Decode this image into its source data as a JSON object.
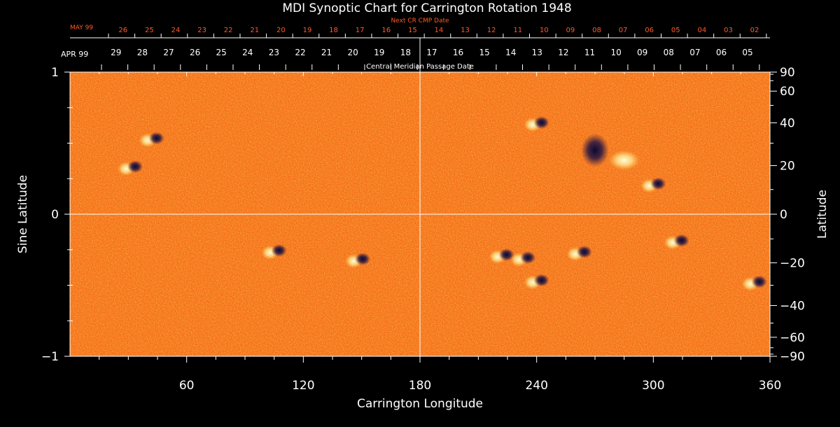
{
  "chart_data": {
    "type": "heatmap",
    "title": "MDI Synoptic Chart for Carrington Rotation 1948",
    "xlabel": "Carrington Longitude",
    "ylabel_left": "Sine Latitude",
    "ylabel_right": "Latitude",
    "xlim": [
      0,
      360
    ],
    "ylim": [
      -1,
      1
    ],
    "x_ticks": [
      60,
      120,
      180,
      240,
      300,
      360
    ],
    "y_ticks_left": [
      {
        "value": 1,
        "label": "1"
      },
      {
        "value": 0,
        "label": "0"
      },
      {
        "value": -1,
        "label": "−1"
      }
    ],
    "y_ticks_right": [
      90,
      60,
      40,
      20,
      0,
      -20,
      -40,
      -60,
      -90
    ],
    "top_axis_title": "Central Meridian Passage Date",
    "top_axis_month": "APR 99",
    "top_axis_dates": [
      "29",
      "28",
      "27",
      "26",
      "25",
      "24",
      "23",
      "22",
      "21",
      "20",
      "19",
      "18",
      "17",
      "16",
      "15",
      "14",
      "13",
      "12",
      "11",
      "10",
      "09",
      "08",
      "07",
      "06",
      "05"
    ],
    "next_axis_title": "Next CR CMP Date",
    "next_axis_month": "MAY 99",
    "next_axis_dates": [
      "26",
      "25",
      "24",
      "23",
      "22",
      "21",
      "20",
      "19",
      "18",
      "17",
      "16",
      "15",
      "14",
      "13",
      "12",
      "11",
      "10",
      "09",
      "08",
      "07",
      "06",
      "05",
      "04",
      "03",
      "02"
    ],
    "gridlines": {
      "vertical_at_longitude": 180,
      "horizontal_at_sine_latitude": 0
    },
    "colors": {
      "background": "#000000",
      "field_base": "#f25a10",
      "positive_polarity": "#fff4b0",
      "negative_polarity": "#1a1045",
      "next_axis_text": "#ff5a28",
      "axis": "#ffffff"
    },
    "active_regions": [
      {
        "lon": 31,
        "sinlat": 0.32,
        "polarity": "mixed"
      },
      {
        "lon": 42,
        "sinlat": 0.52,
        "polarity": "mixed"
      },
      {
        "lon": 105,
        "sinlat": -0.27,
        "polarity": "mixed"
      },
      {
        "lon": 148,
        "sinlat": -0.33,
        "polarity": "mixed"
      },
      {
        "lon": 240,
        "sinlat": 0.63,
        "polarity": "mixed"
      },
      {
        "lon": 270,
        "sinlat": 0.45,
        "polarity": "negative"
      },
      {
        "lon": 285,
        "sinlat": 0.38,
        "polarity": "positive"
      },
      {
        "lon": 300,
        "sinlat": 0.2,
        "polarity": "mixed"
      },
      {
        "lon": 222,
        "sinlat": -0.3,
        "polarity": "mixed"
      },
      {
        "lon": 233,
        "sinlat": -0.32,
        "polarity": "mixed"
      },
      {
        "lon": 262,
        "sinlat": -0.28,
        "polarity": "mixed"
      },
      {
        "lon": 240,
        "sinlat": -0.48,
        "polarity": "mixed"
      },
      {
        "lon": 312,
        "sinlat": -0.2,
        "polarity": "mixed"
      },
      {
        "lon": 352,
        "sinlat": -0.49,
        "polarity": "mixed"
      }
    ]
  }
}
